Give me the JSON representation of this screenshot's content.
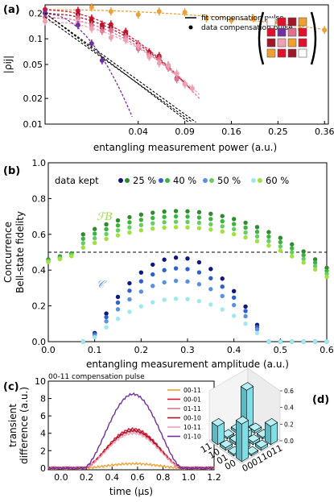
{
  "panel_a": {
    "label": "(a)",
    "ylabel": "|ρij|",
    "xlabel": "entangling measurement power (a.u.)",
    "legend": {
      "fit": "fit compensation pulse",
      "data": "data compensation pulse"
    },
    "matrix_colors": [
      [
        "#ffffff",
        "#e0102f",
        "#a01828",
        "#f0a030"
      ],
      [
        "#e0102f",
        "#7030a0",
        "#e07090",
        "#e0102f"
      ],
      [
        "#a01828",
        "#f0a0b0",
        "#f0a030",
        "#e0102f"
      ],
      [
        "#f0a030",
        "#e0102f",
        "#a01828",
        "#ffffff"
      ]
    ]
  },
  "panel_b": {
    "label": "(b)",
    "ylabel1": "Concurrence",
    "ylabel2": "Bell-state fidelity",
    "xlabel": "entangling measurement amplitude (a.u.)",
    "data_kept_label": "data kept",
    "fb_label": "ℱB",
    "c_label": "𝒞",
    "legend": [
      "25 %",
      "40 %",
      "50 %",
      "60 %"
    ]
  },
  "panel_c": {
    "label": "(c)",
    "title": "00-11 compensation pulse",
    "ylabel1": "transient",
    "ylabel2": "difference (a.u.)",
    "xlabel": "time (μs)",
    "legend": [
      "00-11",
      "00-01",
      "01-11",
      "00-10",
      "10-11",
      "01-10"
    ]
  },
  "panel_d": {
    "label": "(d)",
    "row_ticks": [
      "00",
      "01",
      "10",
      "11"
    ],
    "col_ticks": [
      "00",
      "01",
      "10",
      "11"
    ],
    "z_ticks": [
      "0.0",
      "0.2",
      "0.4",
      "0.6"
    ]
  },
  "chart_data": [
    {
      "type": "scatter",
      "panel": "a",
      "xscale": "sqrt",
      "yscale": "log",
      "xlim": [
        0.0,
        0.37
      ],
      "ylim": [
        0.01,
        0.25
      ],
      "xticks": [
        "0.04",
        "0.09",
        "0.16",
        "0.25",
        "0.36"
      ],
      "yticks": [
        "0.01",
        "0.02",
        "0.05",
        "0.1",
        "0.2"
      ],
      "series": [
        {
          "color": "#f0a030",
          "decay": 1.5,
          "a": 0.22,
          "x": [
            0.0,
            0.01,
            0.02,
            0.04,
            0.06,
            0.09,
            0.12,
            0.16,
            0.2,
            0.25,
            0.3,
            0.36
          ],
          "fit_to": 0.36
        },
        {
          "color": "#e0102f",
          "decay": 22,
          "a": 0.22,
          "x": [
            0.0,
            0.005,
            0.01,
            0.015,
            0.02,
            0.03,
            0.04,
            0.05,
            0.06,
            0.07
          ],
          "fit_to": 0.1
        },
        {
          "color": "#a01828",
          "decay": 21,
          "a": 0.2,
          "x": [
            0.0,
            0.005,
            0.01,
            0.015,
            0.02,
            0.03,
            0.04,
            0.05,
            0.06,
            0.07,
            0.08
          ],
          "fit_to": 0.1
        },
        {
          "color": "#e07090",
          "decay": 20,
          "a": 0.18,
          "x": [
            0.0,
            0.005,
            0.01,
            0.015,
            0.02,
            0.03,
            0.04,
            0.05,
            0.06,
            0.07,
            0.08,
            0.09
          ],
          "fit_to": 0.11
        },
        {
          "color": "#f0a0b0",
          "decay": 18,
          "a": 0.16,
          "x": [
            0.0,
            0.005,
            0.01,
            0.02,
            0.03,
            0.04,
            0.05,
            0.06,
            0.07,
            0.08,
            0.09,
            0.1
          ],
          "fit_to": 0.11
        },
        {
          "color": "#7030a0",
          "decay": 80,
          "a": 0.2,
          "x": [
            0.0,
            0.005,
            0.01,
            0.015
          ],
          "fit_to": 0.035
        }
      ]
    },
    {
      "type": "scatter",
      "panel": "b",
      "xlim": [
        0.0,
        0.6
      ],
      "ylim": [
        0.0,
        1.0
      ],
      "xticks": [
        "0.0",
        "0.1",
        "0.2",
        "0.3",
        "0.4",
        "0.5",
        "0.6"
      ],
      "yticks": [
        "0.0",
        "0.2",
        "0.4",
        "0.6",
        "0.8",
        "1.0"
      ],
      "hline": 0.5,
      "x": [
        0.0,
        0.025,
        0.05,
        0.075,
        0.1,
        0.125,
        0.15,
        0.175,
        0.2,
        0.225,
        0.25,
        0.275,
        0.3,
        0.325,
        0.35,
        0.375,
        0.4,
        0.425,
        0.45,
        0.475,
        0.5,
        0.525,
        0.55,
        0.575,
        0.6
      ],
      "series": [
        {
          "name": "25 %",
          "fid_color": "#2e8b2e",
          "conc_color": "#101880",
          "f_peak": 0.73,
          "c_peak": 0.47
        },
        {
          "name": "40 %",
          "fid_color": "#3cb43c",
          "conc_color": "#3060d0",
          "f_peak": 0.7,
          "c_peak": 0.41
        },
        {
          "name": "50 %",
          "fid_color": "#66cc66",
          "conc_color": "#5a90e0",
          "f_peak": 0.67,
          "c_peak": 0.34
        },
        {
          "name": "60 %",
          "fid_color": "#a0e040",
          "conc_color": "#a0e8f0",
          "f_peak": 0.64,
          "c_peak": 0.24
        }
      ]
    },
    {
      "type": "line",
      "panel": "c",
      "xlim": [
        -0.1,
        1.2
      ],
      "ylim": [
        -0.2,
        10
      ],
      "xticks": [
        "0.0",
        "0.2",
        "0.4",
        "0.6",
        "0.8",
        "1.0",
        "1.2"
      ],
      "yticks": [
        "0",
        "2",
        "4",
        "6",
        "8",
        "10"
      ],
      "series": [
        {
          "name": "00-11",
          "color": "#f0a030",
          "peak": 0.5
        },
        {
          "name": "00-01",
          "color": "#e0102f",
          "peak": 4.5
        },
        {
          "name": "01-11",
          "color": "#e07090",
          "peak": 4.2
        },
        {
          "name": "00-10",
          "color": "#a01828",
          "peak": 4.3
        },
        {
          "name": "10-11",
          "color": "#f0a0b0",
          "peak": 4.0
        },
        {
          "name": "01-10",
          "color": "#7030a0",
          "peak": 8.5
        }
      ]
    },
    {
      "type": "bar3d",
      "panel": "d",
      "zlim": [
        0.0,
        0.6
      ],
      "values": [
        [
          0.45,
          0.02,
          0.03,
          0.22
        ],
        [
          0.02,
          0.05,
          0.03,
          0.02
        ],
        [
          0.03,
          0.03,
          0.07,
          0.03
        ],
        [
          0.22,
          0.02,
          0.03,
          0.45
        ]
      ],
      "color": "#7fdfe8"
    }
  ]
}
